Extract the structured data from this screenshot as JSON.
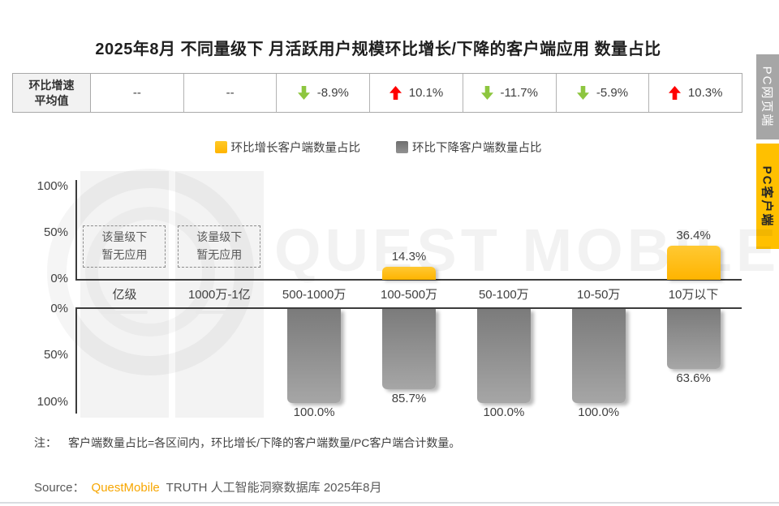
{
  "title": "2025年8月 不同量级下 月活跃用户规模环比增长/下降的客户端应用 数量占比",
  "rate_table": {
    "header_line1": "环比增速",
    "header_line2": "平均值",
    "up_color": "#FF0000",
    "down_color": "#8DC63F",
    "cells": [
      {
        "dir": "none",
        "text": "--"
      },
      {
        "dir": "none",
        "text": "--"
      },
      {
        "dir": "down",
        "text": "-8.9%"
      },
      {
        "dir": "up",
        "text": "10.1%"
      },
      {
        "dir": "down",
        "text": "-11.7%"
      },
      {
        "dir": "down",
        "text": "-5.9%"
      },
      {
        "dir": "up",
        "text": "10.3%"
      }
    ]
  },
  "legend": [
    {
      "label": "环比增长客户端数量占比",
      "color": "#FFC000"
    },
    {
      "label": "环比下降客户端数量占比",
      "color": "#808080"
    }
  ],
  "chart_data": {
    "type": "bar",
    "categories": [
      "亿级",
      "1000万-1亿",
      "500-1000万",
      "100-500万",
      "50-100万",
      "10-50万",
      "10万以下"
    ],
    "series": [
      {
        "name": "环比增长客户端数量占比",
        "color": "#FFC000",
        "values": [
          null,
          null,
          0,
          14.3,
          0,
          0,
          36.4
        ],
        "labels": [
          "",
          "",
          "",
          "14.3%",
          "",
          "",
          "36.4%"
        ]
      },
      {
        "name": "环比下降客户端数量占比",
        "color": "#808080",
        "values": [
          null,
          null,
          100.0,
          85.7,
          100.0,
          100.0,
          63.6
        ],
        "labels": [
          "",
          "",
          "100.0%",
          "85.7%",
          "100.0%",
          "100.0%",
          "63.6%"
        ]
      }
    ],
    "avg_mom_growth_per_category": [
      "--",
      "--",
      "-8.9%",
      "10.1%",
      "-11.7%",
      "-5.9%",
      "10.3%"
    ],
    "no_app_categories": [
      0,
      1
    ],
    "no_app_line1": "该量级下",
    "no_app_line2": "暂无应用",
    "top_axis_ticks": [
      "100%",
      "50%",
      "0%"
    ],
    "bottom_axis_ticks": [
      "0%",
      "50%",
      "100%"
    ],
    "ylim_top": [
      0,
      100
    ],
    "ylim_bottom": [
      0,
      100
    ],
    "grid": false,
    "legend_position": "top"
  },
  "watermark": "QUEST MOBILE",
  "note": {
    "prefix": "注：",
    "text": "客户端数量占比=各区间内，环比增长/下降的客户端数量/PC客户端合计数量。"
  },
  "source": {
    "prefix": "Source：",
    "brand": "QuestMobile",
    "rest": "TRUTH 人工智能洞察数据库 2025年8月"
  },
  "side_tabs": [
    {
      "label": "PC网页端",
      "active": false
    },
    {
      "label": "PC客户端",
      "active": true
    }
  ]
}
